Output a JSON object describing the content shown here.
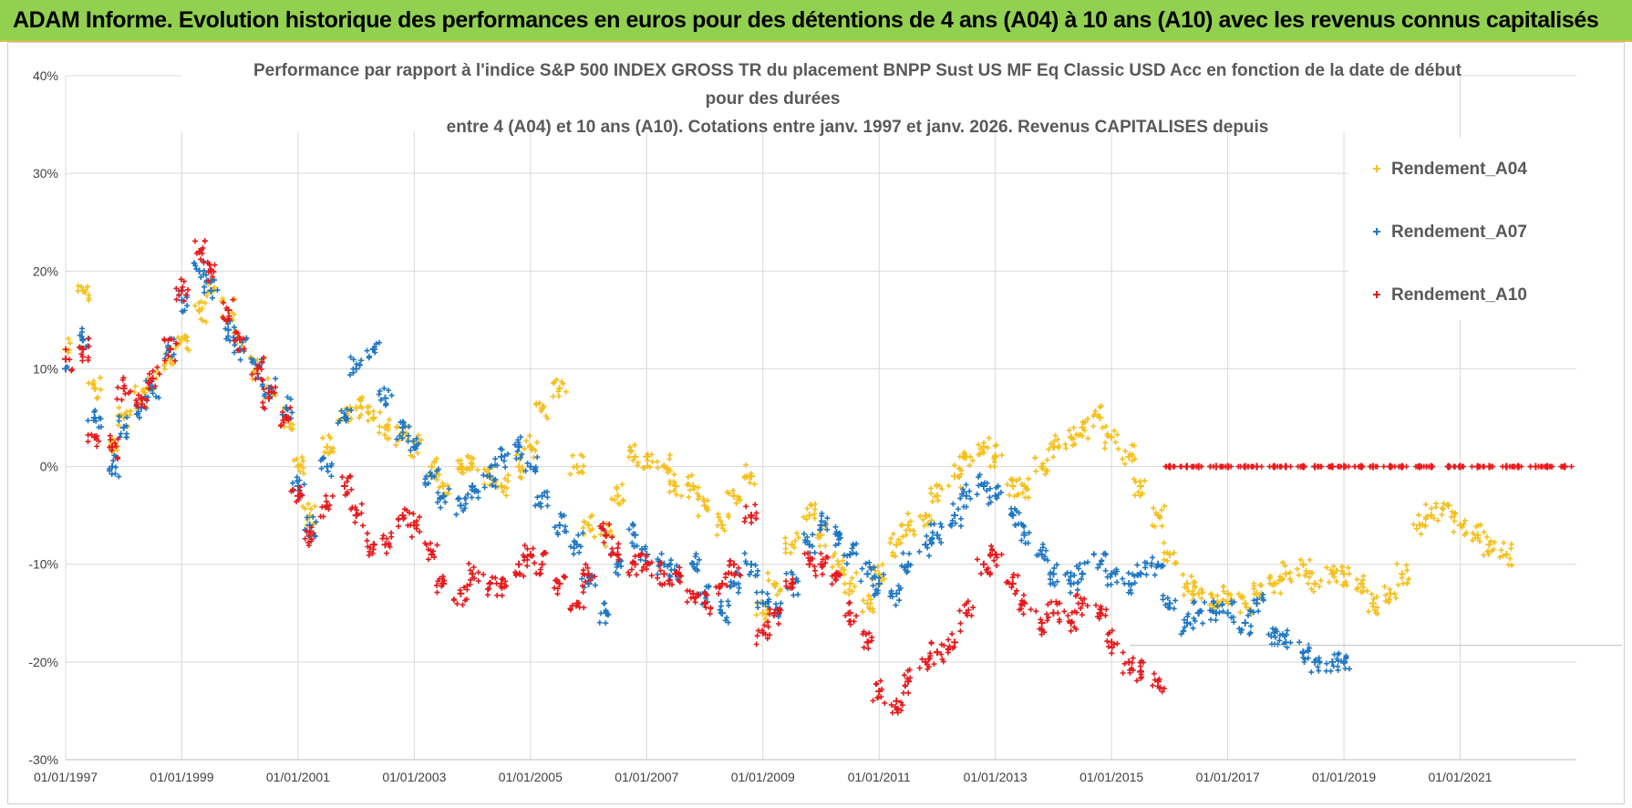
{
  "banner": {
    "title": "ADAM Informe. Evolution historique des performances en euros pour des détentions de 4 ans (A04) à 10 ans (A10) avec les revenus connus capitalisés",
    "background": "#92d050"
  },
  "chart_data": {
    "type": "scatter",
    "title_lines": [
      "Performance par rapport à l'indice S&P 500 INDEX GROSS TR  du placement BNPP Sust US MF Eq Classic USD Acc en fonction de la date de début",
      "pour des durées",
      "entre 4 (A04) et 10 ans (A10).  Cotations entre janv. 1997 et janv. 2026. Revenus CAPITALISES depuis"
    ],
    "xlabel": "",
    "ylabel": "",
    "xlim": [
      1997.0,
      2023.0
    ],
    "ylim": [
      -0.3,
      0.4
    ],
    "grid": true,
    "legend_position": "top-right",
    "x_ticks": [
      {
        "value": 1997,
        "label": "01/01/1997"
      },
      {
        "value": 1999,
        "label": "01/01/1999"
      },
      {
        "value": 2001,
        "label": "01/01/2001"
      },
      {
        "value": 2003,
        "label": "01/01/2003"
      },
      {
        "value": 2005,
        "label": "01/01/2005"
      },
      {
        "value": 2007,
        "label": "01/01/2007"
      },
      {
        "value": 2009,
        "label": "01/01/2009"
      },
      {
        "value": 2011,
        "label": "01/01/2011"
      },
      {
        "value": 2013,
        "label": "01/01/2013"
      },
      {
        "value": 2015,
        "label": "01/01/2015"
      },
      {
        "value": 2017,
        "label": "01/01/2017"
      },
      {
        "value": 2019,
        "label": "01/01/2019"
      },
      {
        "value": 2021,
        "label": "01/01/2021"
      }
    ],
    "y_ticks": [
      {
        "value": 0.4,
        "label": "40%"
      },
      {
        "value": 0.3,
        "label": "30%"
      },
      {
        "value": 0.2,
        "label": "20%"
      },
      {
        "value": 0.1,
        "label": "10%"
      },
      {
        "value": 0.0,
        "label": "0%"
      },
      {
        "value": -0.1,
        "label": "-10%"
      },
      {
        "value": -0.2,
        "label": "-20%"
      },
      {
        "value": -0.3,
        "label": "-30%"
      }
    ],
    "series": [
      {
        "name": "Rendement_A04",
        "color": "#f5c01c",
        "x": [
          1997.0,
          1997.3,
          1997.5,
          1997.8,
          1998.0,
          1998.3,
          1998.5,
          1998.8,
          1999.0,
          1999.3,
          1999.5,
          1999.8,
          2000.0,
          2000.3,
          2000.5,
          2000.8,
          2001.0,
          2001.2,
          2001.5,
          2001.8,
          2002.0,
          2002.3,
          2002.5,
          2002.8,
          2003.0,
          2003.3,
          2003.5,
          2003.8,
          2004.0,
          2004.3,
          2004.5,
          2004.8,
          2005.0,
          2005.2,
          2005.5,
          2005.8,
          2006.0,
          2006.3,
          2006.5,
          2006.8,
          2007.0,
          2007.3,
          2007.5,
          2007.8,
          2008.0,
          2008.3,
          2008.5,
          2008.8,
          2009.0,
          2009.2,
          2009.5,
          2009.8,
          2010.0,
          2010.3,
          2010.5,
          2010.8,
          2011.0,
          2011.3,
          2011.5,
          2011.8,
          2012.0,
          2012.3,
          2012.5,
          2012.8,
          2013.0,
          2013.3,
          2013.5,
          2013.8,
          2014.0,
          2014.3,
          2014.5,
          2014.8,
          2015.0,
          2015.3,
          2015.5,
          2015.8,
          2016.0,
          2016.3,
          2016.5,
          2016.8,
          2017.0,
          2017.3,
          2017.5,
          2017.8,
          2018.0,
          2018.3,
          2018.5,
          2018.8,
          2019.0,
          2019.3,
          2019.5,
          2019.8,
          2020.0,
          2020.3,
          2020.5,
          2020.8,
          2021.0,
          2021.3,
          2021.5,
          2021.8
        ],
        "values": [
          0.12,
          0.18,
          0.08,
          0.02,
          0.05,
          0.07,
          0.09,
          0.11,
          0.13,
          0.16,
          0.18,
          0.16,
          0.13,
          0.1,
          0.08,
          0.05,
          0.0,
          -0.05,
          0.02,
          0.05,
          0.06,
          0.05,
          0.04,
          0.03,
          0.02,
          0.0,
          -0.02,
          0.0,
          0.0,
          -0.01,
          -0.02,
          0.0,
          0.02,
          0.06,
          0.08,
          0.0,
          -0.06,
          -0.07,
          -0.03,
          0.01,
          0.01,
          0.0,
          -0.02,
          -0.02,
          -0.04,
          -0.06,
          -0.03,
          -0.01,
          -0.15,
          -0.12,
          -0.08,
          -0.05,
          -0.07,
          -0.1,
          -0.12,
          -0.14,
          -0.11,
          -0.08,
          -0.06,
          -0.05,
          -0.03,
          -0.01,
          0.01,
          0.02,
          0.01,
          -0.02,
          -0.02,
          0.0,
          0.02,
          0.03,
          0.04,
          0.05,
          0.03,
          0.01,
          -0.02,
          -0.05,
          -0.09,
          -0.12,
          -0.13,
          -0.14,
          -0.13,
          -0.14,
          -0.13,
          -0.12,
          -0.11,
          -0.1,
          -0.12,
          -0.11,
          -0.11,
          -0.12,
          -0.14,
          -0.13,
          -0.11,
          -0.06,
          -0.05,
          -0.04,
          -0.06,
          -0.07,
          -0.08,
          -0.09
        ]
      },
      {
        "name": "Rendement_A07",
        "color": "#1f77c4",
        "x": [
          1997.0,
          1997.3,
          1997.5,
          1997.8,
          1998.0,
          1998.3,
          1998.5,
          1998.8,
          1999.0,
          1999.3,
          1999.5,
          1999.8,
          2000.0,
          2000.3,
          2000.5,
          2000.8,
          2001.0,
          2001.2,
          2001.5,
          2001.8,
          2002.0,
          2002.3,
          2002.5,
          2002.8,
          2003.0,
          2003.3,
          2003.5,
          2003.8,
          2004.0,
          2004.3,
          2004.5,
          2004.8,
          2005.0,
          2005.2,
          2005.5,
          2005.8,
          2006.0,
          2006.3,
          2006.5,
          2006.8,
          2007.0,
          2007.3,
          2007.5,
          2007.8,
          2008.0,
          2008.3,
          2008.5,
          2008.8,
          2009.0,
          2009.2,
          2009.5,
          2009.8,
          2010.0,
          2010.3,
          2010.5,
          2010.8,
          2011.0,
          2011.3,
          2011.5,
          2011.8,
          2012.0,
          2012.3,
          2012.5,
          2012.8,
          2013.0,
          2013.3,
          2013.5,
          2013.8,
          2014.0,
          2014.3,
          2014.5,
          2014.8,
          2015.0,
          2015.3,
          2015.5,
          2015.8,
          2016.0,
          2016.3,
          2016.5,
          2016.8,
          2017.0,
          2017.3,
          2017.5,
          2017.8,
          2018.0,
          2018.3,
          2018.5,
          2018.8,
          2019.0
        ],
        "values": [
          0.1,
          0.13,
          0.05,
          0.0,
          0.04,
          0.06,
          0.08,
          0.12,
          0.17,
          0.2,
          0.18,
          0.14,
          0.12,
          0.1,
          0.08,
          0.06,
          -0.02,
          -0.06,
          0.0,
          0.05,
          0.1,
          0.12,
          0.07,
          0.04,
          0.02,
          -0.01,
          -0.03,
          -0.04,
          -0.02,
          -0.01,
          0.01,
          0.02,
          0.0,
          -0.03,
          -0.06,
          -0.08,
          -0.12,
          -0.15,
          -0.1,
          -0.07,
          -0.09,
          -0.1,
          -0.11,
          -0.1,
          -0.13,
          -0.15,
          -0.12,
          -0.1,
          -0.14,
          -0.15,
          -0.12,
          -0.08,
          -0.06,
          -0.07,
          -0.09,
          -0.11,
          -0.12,
          -0.13,
          -0.1,
          -0.08,
          -0.07,
          -0.05,
          -0.03,
          -0.02,
          -0.03,
          -0.05,
          -0.07,
          -0.09,
          -0.11,
          -0.12,
          -0.11,
          -0.1,
          -0.11,
          -0.12,
          -0.11,
          -0.1,
          -0.14,
          -0.16,
          -0.15,
          -0.15,
          -0.15,
          -0.16,
          -0.14,
          -0.17,
          -0.18,
          -0.19,
          -0.2,
          -0.2,
          -0.2
        ]
      },
      {
        "name": "Rendement_A10",
        "color": "#e8191b",
        "x": [
          1997.0,
          1997.3,
          1997.5,
          1997.8,
          1998.0,
          1998.3,
          1998.5,
          1998.8,
          1999.0,
          1999.3,
          1999.5,
          1999.8,
          2000.0,
          2000.3,
          2000.5,
          2000.8,
          2001.0,
          2001.2,
          2001.5,
          2001.8,
          2002.0,
          2002.3,
          2002.5,
          2002.8,
          2003.0,
          2003.3,
          2003.5,
          2003.8,
          2004.0,
          2004.3,
          2004.5,
          2004.8,
          2005.0,
          2005.2,
          2005.5,
          2005.8,
          2006.0,
          2006.3,
          2006.5,
          2006.8,
          2007.0,
          2007.3,
          2007.5,
          2007.8,
          2008.0,
          2008.3,
          2008.5,
          2008.8,
          2009.0,
          2009.2,
          2009.5,
          2009.8,
          2010.0,
          2010.3,
          2010.5,
          2010.8,
          2011.0,
          2011.3,
          2011.5,
          2011.8,
          2012.0,
          2012.3,
          2012.5,
          2012.8,
          2013.0,
          2013.3,
          2013.5,
          2013.8,
          2014.0,
          2014.3,
          2014.5,
          2014.8,
          2015.0,
          2015.3,
          2015.5,
          2015.8,
          2016.0,
          2016.3,
          2016.5,
          2016.8,
          2017.0,
          2017.3,
          2017.5,
          2017.8,
          2018.0,
          2018.3,
          2018.5,
          2018.8,
          2019.0,
          2019.3,
          2019.5,
          2019.8,
          2020.0,
          2020.3,
          2020.5,
          2020.8,
          2021.0,
          2021.3,
          2021.5,
          2021.8,
          2022.0,
          2022.3,
          2022.5,
          2022.8
        ],
        "values": [
          0.11,
          0.12,
          0.03,
          0.02,
          0.08,
          0.07,
          0.09,
          0.12,
          0.18,
          0.22,
          0.2,
          0.16,
          0.13,
          0.1,
          0.07,
          0.05,
          -0.03,
          -0.07,
          -0.04,
          -0.02,
          -0.05,
          -0.08,
          -0.08,
          -0.05,
          -0.06,
          -0.09,
          -0.12,
          -0.13,
          -0.11,
          -0.12,
          -0.12,
          -0.1,
          -0.09,
          -0.1,
          -0.12,
          -0.14,
          -0.11,
          -0.07,
          -0.09,
          -0.1,
          -0.1,
          -0.11,
          -0.11,
          -0.13,
          -0.14,
          -0.12,
          -0.1,
          -0.05,
          -0.17,
          -0.15,
          -0.12,
          -0.1,
          -0.1,
          -0.11,
          -0.15,
          -0.18,
          -0.23,
          -0.24,
          -0.22,
          -0.2,
          -0.19,
          -0.18,
          -0.15,
          -0.1,
          -0.09,
          -0.12,
          -0.14,
          -0.16,
          -0.15,
          -0.16,
          -0.14,
          -0.15,
          -0.18,
          -0.2,
          -0.21,
          -0.22,
          0.0,
          0.0,
          0.0,
          0.0,
          0.0,
          0.0,
          0.0,
          0.0,
          0.0,
          0.0,
          0.0,
          0.0,
          0.0,
          0.0,
          0.0,
          0.0,
          0.0,
          0.0,
          0.0,
          0.0,
          0.0,
          0.0,
          0.0,
          0.0,
          0.0,
          0.0,
          0.0,
          0.0
        ]
      }
    ]
  }
}
